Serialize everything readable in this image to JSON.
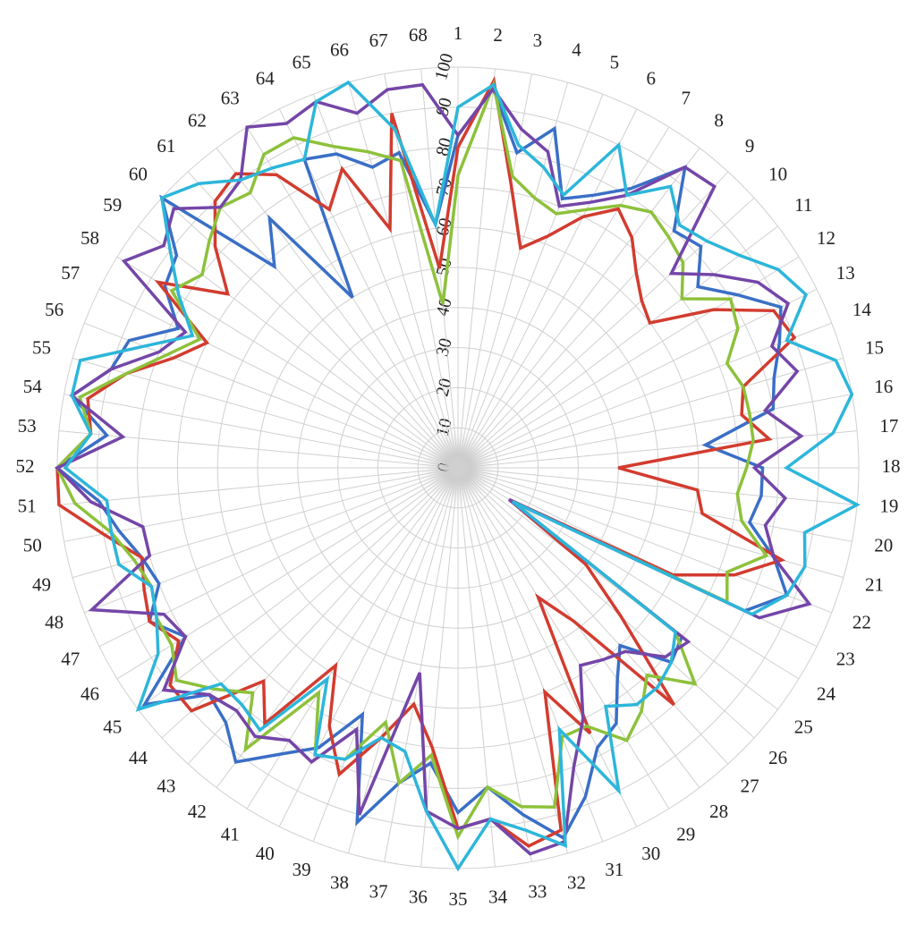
{
  "chart_data": {
    "type": "radar",
    "categories": [
      "1",
      "2",
      "3",
      "4",
      "5",
      "6",
      "7",
      "8",
      "9",
      "10",
      "11",
      "12",
      "13",
      "14",
      "15",
      "16",
      "17",
      "18",
      "19",
      "20",
      "21",
      "22",
      "23",
      "24",
      "25",
      "26",
      "27",
      "28",
      "29",
      "30",
      "31",
      "32",
      "33",
      "34",
      "35",
      "36",
      "37",
      "38",
      "39",
      "40",
      "41",
      "42",
      "43",
      "44",
      "45",
      "46",
      "47",
      "48",
      "49",
      "50",
      "51",
      "52",
      "53",
      "54",
      "55",
      "56",
      "57",
      "58",
      "59",
      "60",
      "61",
      "62",
      "63",
      "64",
      "65",
      "66",
      "67",
      "68"
    ],
    "rlim": [
      0,
      100
    ],
    "rticks": [
      0,
      10,
      20,
      30,
      40,
      50,
      60,
      70,
      80,
      90,
      100
    ],
    "grid": true,
    "series": [
      {
        "color": "#3a6fc6",
        "values": [
          83,
          95,
          80,
          88,
          72,
          76,
          82,
          94,
          80,
          82,
          75,
          82,
          90,
          86,
          82,
          80,
          62,
          76,
          76,
          74,
          82,
          88,
          80,
          16,
          70,
          72,
          60,
          66,
          75,
          78,
          88,
          96,
          88,
          80,
          86,
          74,
          80,
          92,
          66,
          78,
          84,
          92,
          86,
          84,
          98,
          80,
          86,
          80,
          82,
          86,
          90,
          100,
          88,
          98,
          90,
          88,
          78,
          86,
          88,
          100,
          68,
          78,
          50,
          86,
          84,
          78,
          80,
          61
        ]
      },
      {
        "color": "#d23c2f",
        "values": [
          80,
          97,
          72,
          57,
          62,
          70,
          76,
          72,
          66,
          62,
          60,
          75,
          88,
          90,
          74,
          72,
          78,
          40,
          60,
          62,
          84,
          74,
          60,
          15,
          40,
          55,
          80,
          48,
          38,
          74,
          60,
          94,
          96,
          88,
          90,
          70,
          60,
          70,
          82,
          72,
          58,
          80,
          72,
          90,
          90,
          82,
          86,
          84,
          82,
          90,
          100,
          100,
          92,
          94,
          86,
          76,
          70,
          88,
          72,
          82,
          90,
          92,
          86,
          72,
          80,
          62,
          90,
          50
        ]
      },
      {
        "color": "#8dc13b",
        "values": [
          73,
          96,
          74,
          70,
          68,
          72,
          77,
          80,
          78,
          76,
          70,
          80,
          78,
          72,
          74,
          74,
          74,
          72,
          70,
          72,
          80,
          72,
          75,
          16,
          68,
          80,
          70,
          76,
          80,
          72,
          72,
          88,
          86,
          80,
          92,
          72,
          80,
          66,
          78,
          80,
          66,
          88,
          76,
          82,
          88,
          84,
          84,
          82,
          84,
          88,
          96,
          100,
          92,
          96,
          86,
          78,
          72,
          84,
          80,
          84,
          88,
          86,
          92,
          92,
          86,
          82,
          78,
          41
        ]
      },
      {
        "color": "#7446a8",
        "values": [
          83,
          95,
          86,
          82,
          70,
          74,
          80,
          94,
          95,
          72,
          80,
          88,
          92,
          84,
          88,
          78,
          86,
          74,
          82,
          78,
          82,
          94,
          84,
          15,
          72,
          70,
          62,
          60,
          58,
          70,
          80,
          97,
          98,
          88,
          90,
          86,
          52,
          90,
          70,
          82,
          80,
          84,
          82,
          84,
          92,
          80,
          82,
          98,
          80,
          80,
          92,
          100,
          84,
          98,
          90,
          80,
          76,
          98,
          92,
          96,
          88,
          90,
          100,
          96,
          98,
          92,
          96,
          96
        ]
      },
      {
        "color": "#2db6da",
        "values": [
          90,
          96,
          82,
          78,
          73,
          90,
          80,
          88,
          82,
          84,
          88,
          94,
          97,
          88,
          98,
          100,
          94,
          82,
          100,
          88,
          90,
          88,
          82,
          16,
          68,
          72,
          74,
          74,
          70,
          90,
          70,
          98,
          92,
          88,
          100,
          86,
          72,
          70,
          78,
          80,
          62,
          82,
          80,
          80,
          100,
          88,
          84,
          82,
          88,
          88,
          88,
          98,
          92,
          98,
          98,
          84,
          74,
          82,
          90,
          100,
          96,
          90,
          88,
          86,
          98,
          100,
          86,
          61
        ]
      }
    ]
  }
}
